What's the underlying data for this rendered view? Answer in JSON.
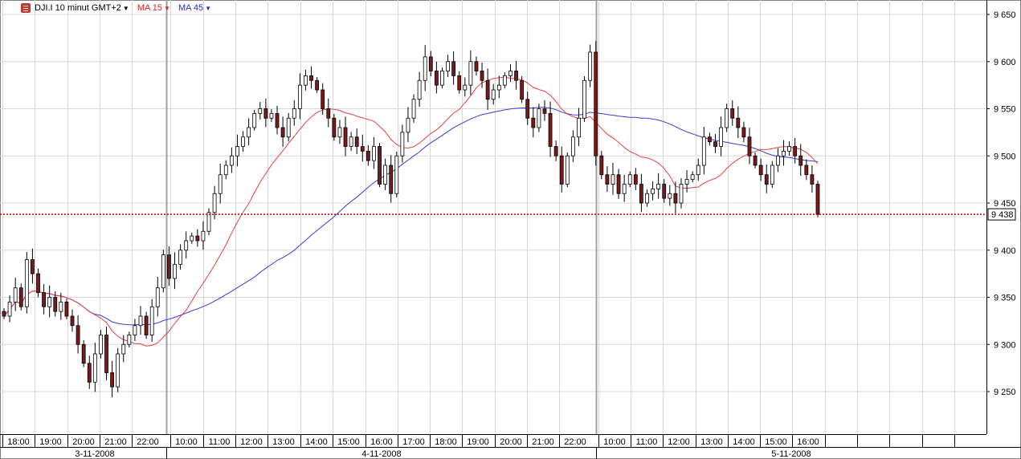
{
  "legend": {
    "symbol_label": "DJI.I 10 minut GMT+2",
    "ma_fast_label": "MA 15",
    "ma_slow_label": "MA 45"
  },
  "colors": {
    "up_candle": "#ffffff",
    "down_candle": "#7a1a1a",
    "ma_fast": "#e84040",
    "ma_slow": "#3a3ad8",
    "current_price_line": "#c00000",
    "grid": "#d8d8d8"
  },
  "chart_data": {
    "type": "candlestick",
    "ylim": [
      9200,
      9660
    ],
    "y_ticks": [
      9250,
      9300,
      9350,
      9400,
      9450,
      9500,
      9550,
      9600,
      9650
    ],
    "y_tick_labels": [
      "9 250",
      "9 300",
      "9 350",
      "9 400",
      "9 450",
      "9 500",
      "9 550",
      "9 600",
      "9 650"
    ],
    "current_price": 9438,
    "current_price_label": "9 438",
    "hour_labels": [
      "18:00",
      "19:00",
      "20:00",
      "21:00",
      "22:00",
      "10:00",
      "11:00",
      "12:00",
      "13:00",
      "14:00",
      "15:00",
      "16:00",
      "17:00",
      "18:00",
      "19:00",
      "20:00",
      "21:00",
      "22:00",
      "10:00",
      "11:00",
      "12:00",
      "13:00",
      "14:00",
      "15:00",
      "16:00"
    ],
    "date_labels": [
      "3-11-2008",
      "4-11-2008",
      "5-11-2008"
    ],
    "closes": [
      9330,
      9345,
      9360,
      9340,
      9390,
      9375,
      9355,
      9340,
      9350,
      9335,
      9345,
      9330,
      9320,
      9300,
      9280,
      9260,
      9290,
      9310,
      9270,
      9255,
      9290,
      9300,
      9310,
      9320,
      9330,
      9310,
      9340,
      9360,
      9395,
      9370,
      9385,
      9400,
      9410,
      9415,
      9410,
      9420,
      9440,
      9460,
      9480,
      9490,
      9500,
      9510,
      9520,
      9530,
      9545,
      9550,
      9540,
      9545,
      9530,
      9520,
      9540,
      9550,
      9575,
      9585,
      9580,
      9570,
      9550,
      9540,
      9520,
      9530,
      9510,
      9520,
      9510,
      9505,
      9495,
      9510,
      9470,
      9490,
      9460,
      9500,
      9525,
      9540,
      9560,
      9580,
      9605,
      9590,
      9575,
      9590,
      9600,
      9585,
      9570,
      9575,
      9600,
      9590,
      9580,
      9560,
      9570,
      9575,
      9585,
      9590,
      9580,
      9560,
      9540,
      9530,
      9550,
      9545,
      9510,
      9500,
      9470,
      9500,
      9520,
      9540,
      9580,
      9610,
      9500,
      9480,
      9470,
      9480,
      9460,
      9470,
      9480,
      9470,
      9450,
      9460,
      9465,
      9470,
      9455,
      9460,
      9450,
      9470,
      9475,
      9480,
      9490,
      9520,
      9515,
      9510,
      9530,
      9550,
      9540,
      9530,
      9520,
      9500,
      9490,
      9480,
      9470,
      9490,
      9500,
      9505,
      9510,
      9500,
      9490,
      9480,
      9470,
      9438
    ]
  }
}
